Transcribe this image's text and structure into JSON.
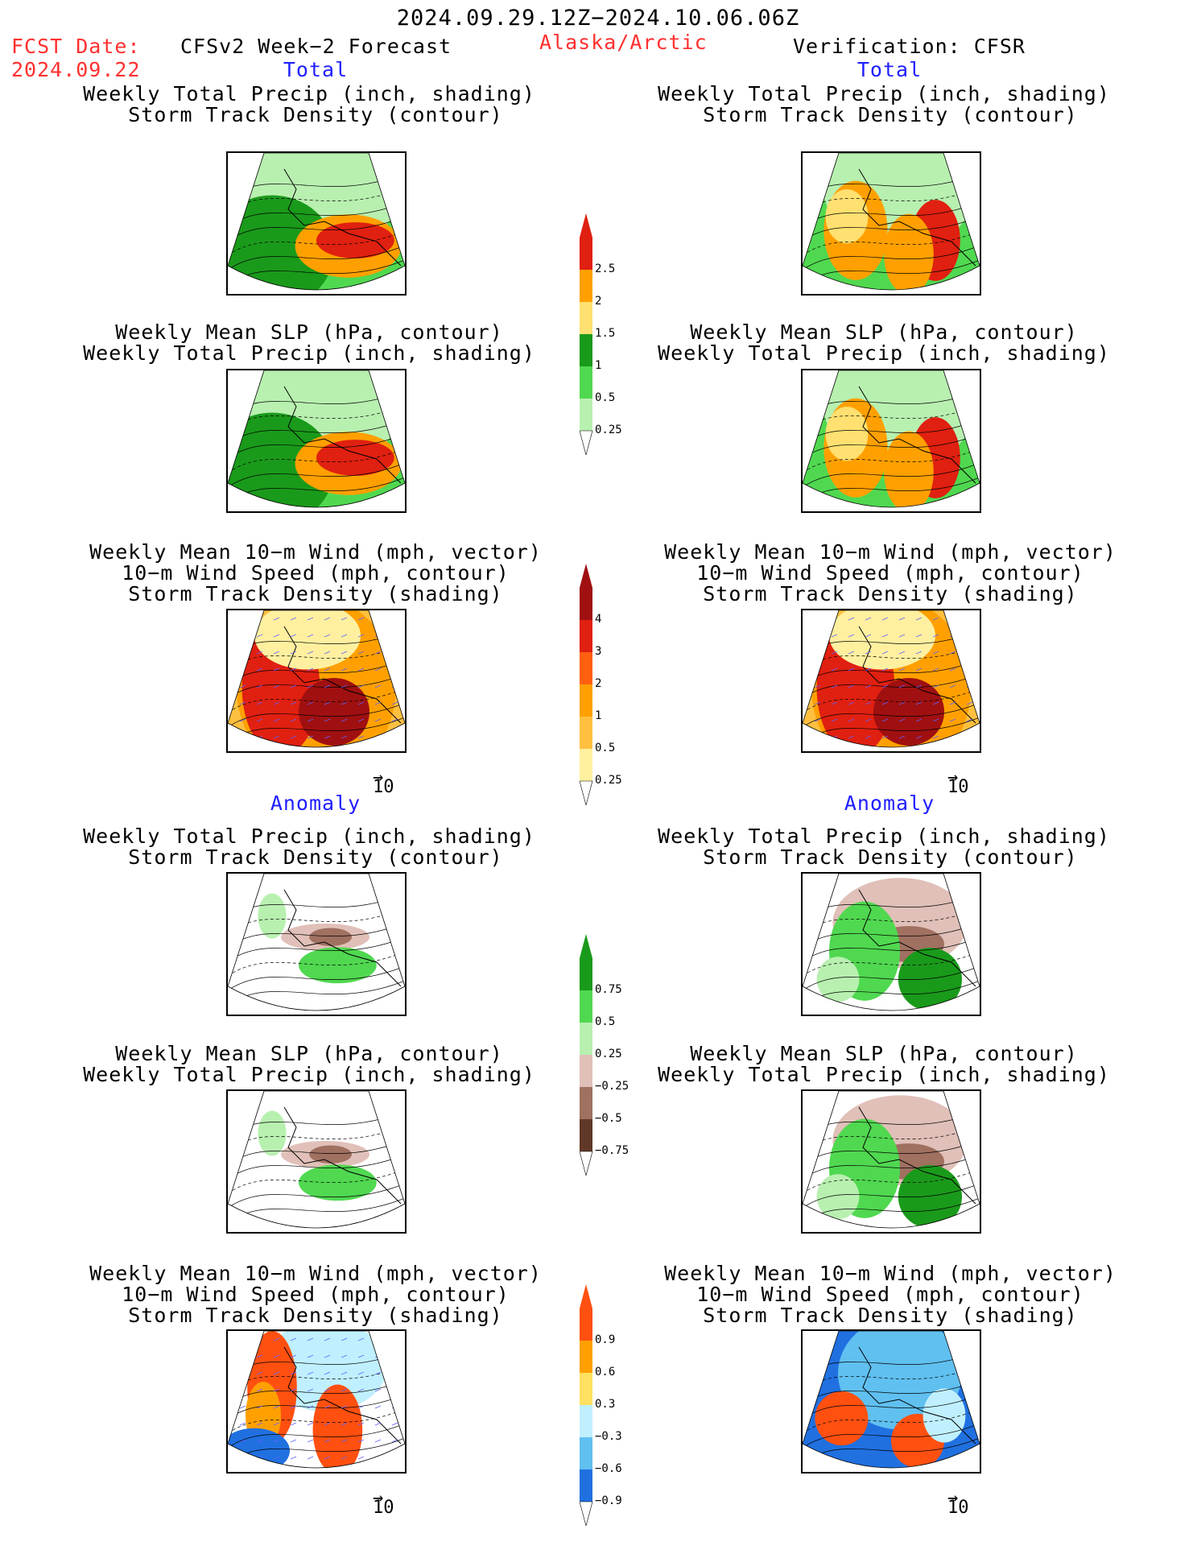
{
  "header": {
    "date_range": "2024.09.29.12Z−2024.10.06.06Z",
    "fcst_label": "FCST Date:",
    "fcst_date": "2024.09.22",
    "model": "CFSv2 Week−2 Forecast",
    "region": "Alaska/Arctic",
    "verification": "Verification: CFSR"
  },
  "sections": {
    "total": "Total",
    "anomaly": "Anomaly"
  },
  "titles": {
    "precip_storm": [
      "Weekly Total Precip (inch, shading)",
      "Storm Track Density (contour)"
    ],
    "slp_precip": [
      "Weekly Mean SLP (hPa, contour)",
      "Weekly Total Precip (inch, shading)"
    ],
    "wind": [
      "Weekly Mean 10−m Wind (mph, vector)",
      "10−m Wind Speed (mph, contour)",
      "Storm Track Density (shading)"
    ]
  },
  "vector_ref": "10",
  "colorbars": {
    "precip_total": {
      "labels": [
        "2.5",
        "2",
        "1.5",
        "1",
        "0.5",
        "0.25"
      ],
      "colors": [
        "#e02010",
        "#ffa000",
        "#ffe070",
        "#1a9a1a",
        "#50d850",
        "#b8f0b0"
      ]
    },
    "storm_total": {
      "labels": [
        "4",
        "3",
        "2",
        "1",
        "0.5",
        "0.25"
      ],
      "colors": [
        "#a01010",
        "#e02010",
        "#ff6010",
        "#ffa000",
        "#ffc040",
        "#fff0a0"
      ]
    },
    "precip_anom": {
      "labels": [
        "0.75",
        "0.5",
        "0.25",
        "−0.25",
        "−0.5",
        "−0.75"
      ],
      "colors": [
        "#1a9a1a",
        "#50d850",
        "#b8f0b0",
        "#e0c0b8",
        "#a07060",
        "#603828"
      ]
    },
    "storm_anom": {
      "labels": [
        "0.9",
        "0.6",
        "0.3",
        "−0.3",
        "−0.6",
        "−0.9"
      ],
      "colors": [
        "#ff5010",
        "#ffa000",
        "#ffe060",
        "#c0f0ff",
        "#60c0f0",
        "#2070e0"
      ]
    }
  }
}
